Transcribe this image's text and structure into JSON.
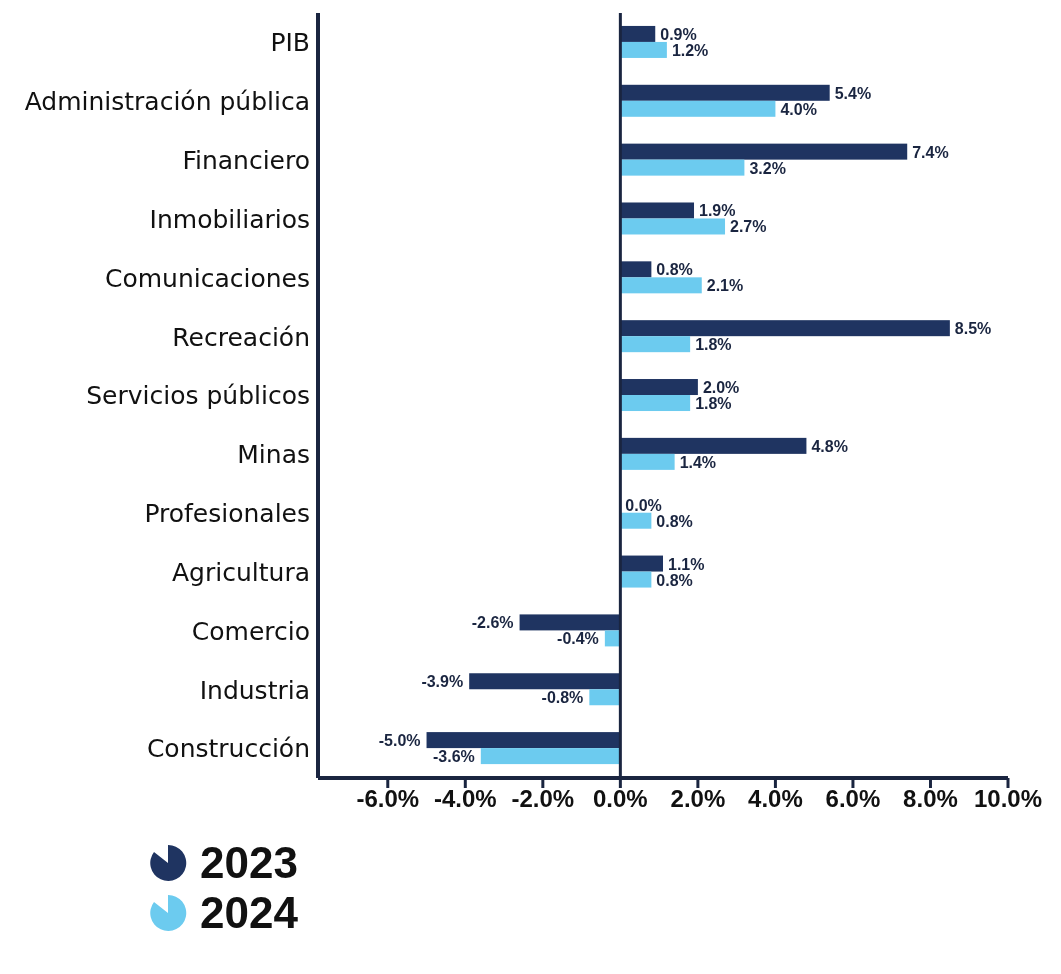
{
  "chart_data": {
    "type": "bar",
    "orientation": "horizontal",
    "categories": [
      "PIB",
      "Administración pública",
      "Financiero",
      "Inmobiliarios",
      "Comunicaciones",
      "Recreación",
      "Servicios públicos",
      "Minas",
      "Profesionales",
      "Agricultura",
      "Comercio",
      "Industria",
      "Construcción"
    ],
    "series": [
      {
        "name": "2023",
        "color": "#1f3461",
        "values": [
          0.9,
          5.4,
          7.4,
          1.9,
          0.8,
          8.5,
          2.0,
          4.8,
          0.0,
          1.1,
          -2.6,
          -3.9,
          -5.0
        ],
        "value_labels": [
          "0.9%",
          "5.4%",
          "7.4%",
          "1.9%",
          "0.8%",
          "8.5%",
          "2.0%",
          "4.8%",
          "0.0%",
          "1.1%",
          "-2.6%",
          "-3.9%",
          "-5.0%"
        ]
      },
      {
        "name": "2024",
        "color": "#6ccbef",
        "values": [
          1.2,
          4.0,
          3.2,
          2.7,
          2.1,
          1.8,
          1.8,
          1.4,
          0.8,
          0.8,
          -0.4,
          -0.8,
          -3.6
        ],
        "value_labels": [
          "1.2%",
          "4.0%",
          "3.2%",
          "2.7%",
          "2.1%",
          "1.8%",
          "1.8%",
          "1.4%",
          "0.8%",
          "0.8%",
          "-0.4%",
          "-0.8%",
          "-3.6%"
        ]
      }
    ],
    "xlim": [
      -7.8,
      10
    ],
    "xticks": [
      {
        "value": -6,
        "label": "-6.0%"
      },
      {
        "value": -4,
        "label": "-4.0%"
      },
      {
        "value": -2,
        "label": "-2.0%"
      },
      {
        "value": 0,
        "label": "0.0%"
      },
      {
        "value": 2,
        "label": "2.0%"
      },
      {
        "value": 4,
        "label": "4.0%"
      },
      {
        "value": 6,
        "label": "6.0%"
      },
      {
        "value": 8,
        "label": "8.0%"
      },
      {
        "value": 10,
        "label": "10.0%"
      }
    ],
    "ref_lines": [
      {
        "axis": "x",
        "value": 0,
        "color": "#1a2540"
      }
    ],
    "grid": false,
    "legend": "bottom left"
  }
}
